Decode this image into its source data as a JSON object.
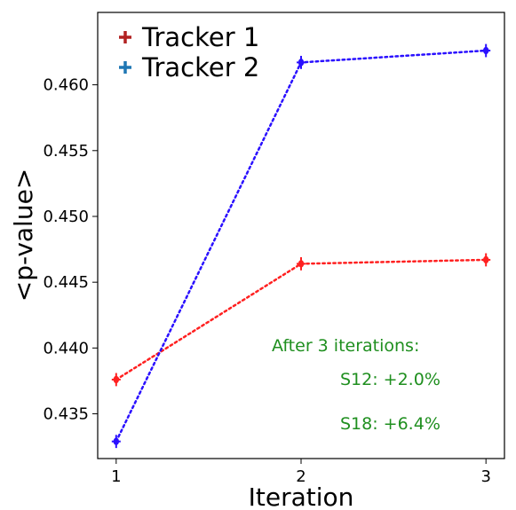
{
  "chart_data": {
    "type": "line",
    "title": "",
    "xlabel": "Iteration",
    "ylabel": "<p-value>",
    "x": [
      1,
      2,
      3
    ],
    "xticks": [
      "1",
      "2",
      "3"
    ],
    "yticks": [
      "0.435",
      "0.440",
      "0.445",
      "0.450",
      "0.455",
      "0.460"
    ],
    "ytick_values": [
      0.435,
      0.44,
      0.445,
      0.45,
      0.455,
      0.46
    ],
    "xlim": [
      0.9,
      3.1
    ],
    "ylim": [
      0.4316,
      0.4655
    ],
    "grid": false,
    "legend_position": "top-left",
    "series": [
      {
        "name": "Tracker 1",
        "values": [
          0.4376,
          0.4464,
          0.4467
        ],
        "errors": [
          0.0005,
          0.0005,
          0.0005
        ],
        "color": "#ff2020",
        "legend_marker_color": "#b22222",
        "linestyle": "dotted"
      },
      {
        "name": "Tracker 2",
        "values": [
          0.4329,
          0.4617,
          0.4626
        ],
        "errors": [
          0.0005,
          0.0005,
          0.0005
        ],
        "color": "#2a10ff",
        "legend_marker_color": "#1f77b4",
        "linestyle": "dotted"
      }
    ],
    "annotations": [
      "After 3 iterations:",
      "S12: +2.0%",
      "S18: +6.4%"
    ],
    "annotation_color": "#1f8f1f"
  }
}
